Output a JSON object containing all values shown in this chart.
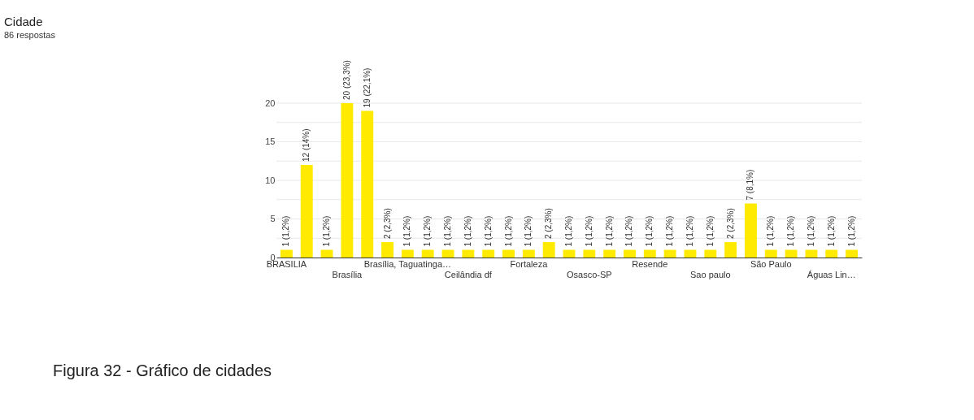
{
  "chart_data": {
    "type": "bar",
    "title": "Cidade",
    "subtitle": "86 respostas",
    "categories": [
      "BRASILIA",
      null,
      null,
      "Brasília",
      null,
      null,
      "Brasília, Taguatinga…",
      null,
      null,
      "Ceilândia df",
      null,
      null,
      "Fortaleza",
      null,
      null,
      "Osasco-SP",
      null,
      null,
      "Resende",
      null,
      null,
      "Sao paulo",
      null,
      null,
      "São Paulo",
      null,
      null,
      "Águas Lin…",
      null
    ],
    "values": [
      1,
      12,
      1,
      20,
      19,
      2,
      1,
      1,
      1,
      1,
      1,
      1,
      1,
      2,
      1,
      1,
      1,
      1,
      1,
      1,
      1,
      1,
      2,
      7,
      1,
      1,
      1,
      1,
      1
    ],
    "value_labels": [
      "1 (1,2%)",
      "12 (14%)",
      "1 (1,2%)",
      "20 (23,3%)",
      "19 (22,1%)",
      "2 (2,3%)",
      "1 (1,2%)",
      "1 (1,2%)",
      "1 (1,2%)",
      "1 (1,2%)",
      "1 (1,2%)",
      "1 (1,2%)",
      "1 (1,2%)",
      "2 (2,3%)",
      "1 (1,2%)",
      "1 (1,2%)",
      "1 (1,2%)",
      "1 (1,2%)",
      "1 (1,2%)",
      "1 (1,2%)",
      "1 (1,2%)",
      "1 (1,2%)",
      "2 (2,3%)",
      "7 (8,1%)",
      "1 (1,2%)",
      "1 (1,2%)",
      "1 (1,2%)",
      "1 (1,2%)",
      "1 (1,2%)"
    ],
    "color": "#ffea00",
    "ylim": [
      0,
      20
    ],
    "yticks": [
      0,
      {
        "value": 2.5,
        "label": null
      },
      5,
      {
        "value": 7.5,
        "label": null
      },
      10,
      {
        "value": 12.5,
        "label": null
      },
      15,
      {
        "value": 17.5,
        "label": null
      },
      20
    ],
    "grid": "y",
    "annotations": [
      "Figura 32 - Gráfico de cidades"
    ]
  }
}
